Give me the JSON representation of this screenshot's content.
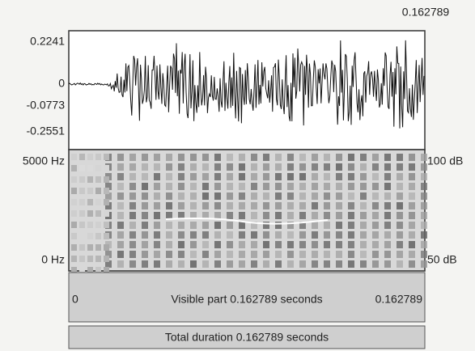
{
  "window": {
    "cursor_time": "0.162789"
  },
  "waveform": {
    "axis_labels": [
      "0.2241",
      "0",
      "-0.0773",
      "-0.2551"
    ]
  },
  "spectrogram": {
    "freq_top": "5000 Hz",
    "freq_bottom": "0 Hz",
    "db_top": "100 dB",
    "db_bottom": "50 dB"
  },
  "visible_bar": {
    "start": "0",
    "text": "Visible part 0.162789 seconds",
    "end": "0.162789"
  },
  "total_bar": {
    "text": "Total duration 0.162789 seconds"
  }
}
